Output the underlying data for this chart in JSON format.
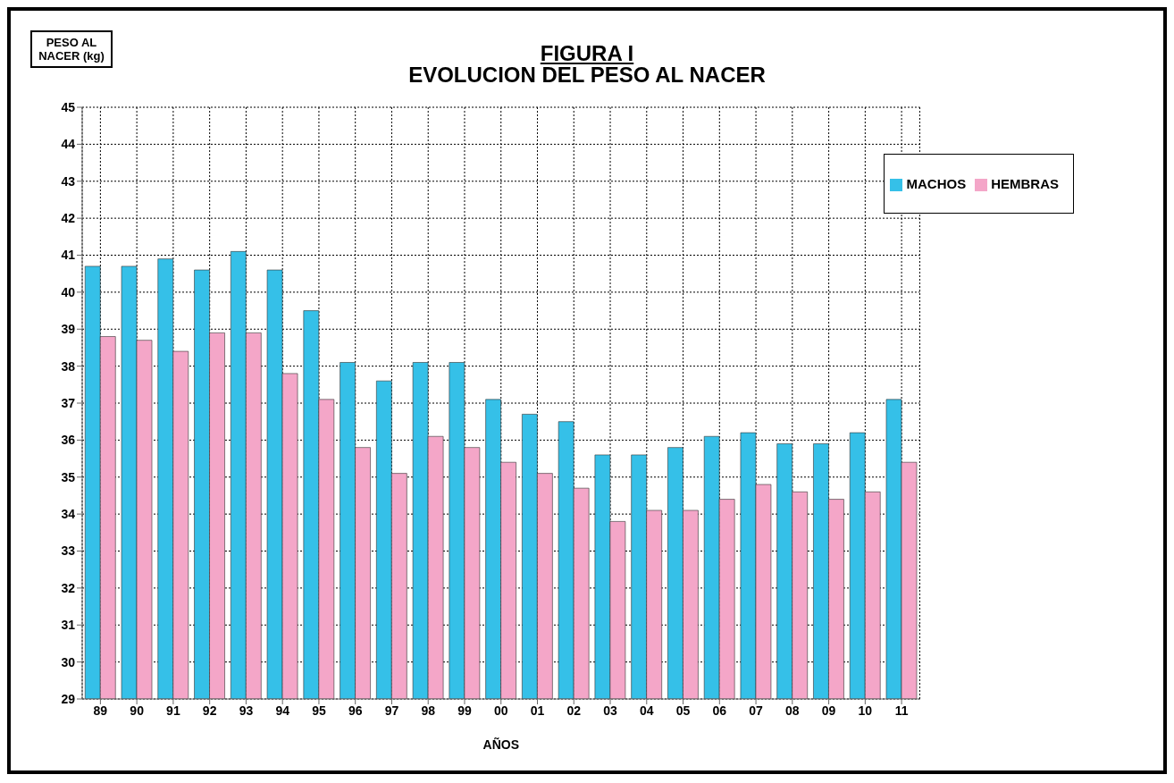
{
  "chart_data": {
    "type": "bar",
    "title": "FIGURA I",
    "subtitle": "EVOLUCION DEL PESO AL NACER",
    "ylabel": "PESO AL NACER (kg)",
    "xlabel": "AÑOS",
    "categories": [
      "89",
      "90",
      "91",
      "92",
      "93",
      "94",
      "95",
      "96",
      "97",
      "98",
      "99",
      "00",
      "01",
      "02",
      "03",
      "04",
      "05",
      "06",
      "07",
      "08",
      "09",
      "10",
      "11"
    ],
    "series": [
      {
        "name": "MACHOS",
        "color": "#35c0e8",
        "values": [
          40.7,
          40.7,
          40.9,
          40.6,
          41.1,
          40.6,
          39.5,
          38.1,
          37.6,
          38.1,
          38.1,
          37.1,
          36.7,
          36.5,
          35.6,
          35.6,
          35.8,
          36.1,
          36.2,
          35.9,
          35.9,
          36.2,
          37.1
        ]
      },
      {
        "name": "HEMBRAS",
        "color": "#f4a6c8",
        "values": [
          38.8,
          38.7,
          38.4,
          38.9,
          38.9,
          37.8,
          37.1,
          35.8,
          35.1,
          36.1,
          35.8,
          35.4,
          35.1,
          34.7,
          33.8,
          34.1,
          34.1,
          34.4,
          34.8,
          34.6,
          34.4,
          34.6,
          35.4
        ]
      }
    ],
    "ylim": [
      29,
      45
    ],
    "yticks": [
      29,
      30,
      31,
      32,
      33,
      34,
      35,
      36,
      37,
      38,
      39,
      40,
      41,
      42,
      43,
      44,
      45
    ],
    "grid": true,
    "legend": "top right"
  }
}
